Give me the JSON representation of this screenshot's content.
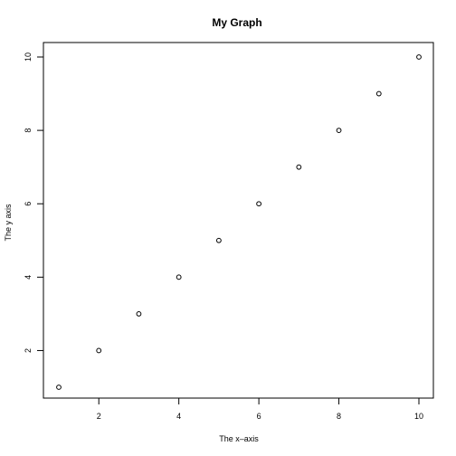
{
  "chart_data": {
    "type": "scatter",
    "title": "My Graph",
    "xlabel": "The x–axis",
    "ylabel": "The y axis",
    "xlim": [
      1,
      10
    ],
    "ylim": [
      1,
      10
    ],
    "xticks": [
      2,
      4,
      6,
      8,
      10
    ],
    "yticks": [
      2,
      4,
      6,
      8,
      10
    ],
    "grid": false,
    "series": [
      {
        "x": [
          1,
          2,
          3,
          4,
          5,
          6,
          7,
          8,
          9,
          10
        ],
        "y": [
          1,
          2,
          3,
          4,
          5,
          6,
          7,
          8,
          9,
          10
        ]
      }
    ]
  }
}
